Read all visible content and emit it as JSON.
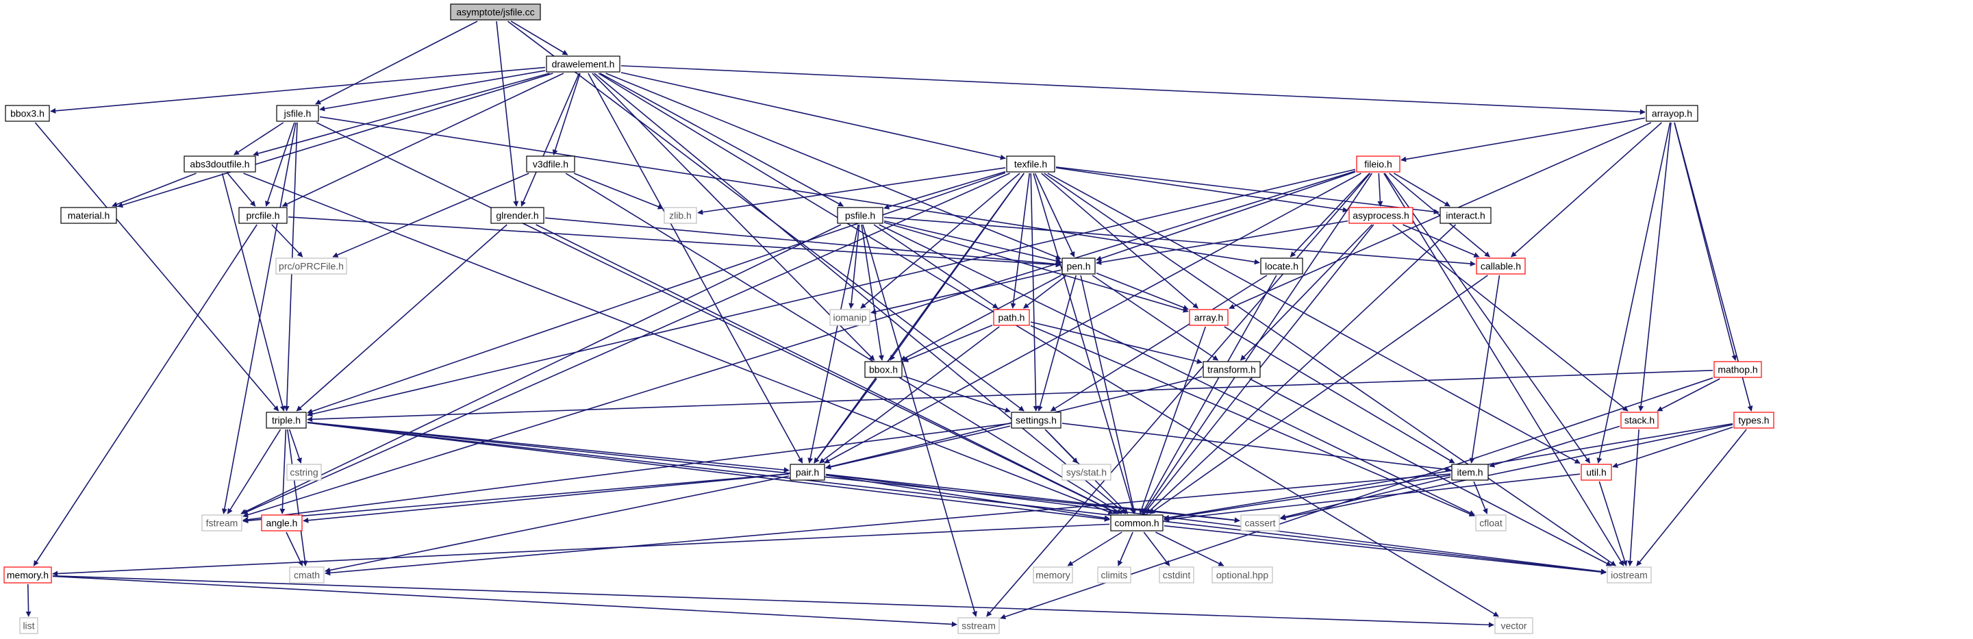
{
  "diagram": {
    "colors": {
      "edge": "#191970",
      "background": "#ffffff",
      "root_fill": "#bfbfbf",
      "default_fill": "#ffffff",
      "default_border": "#000000",
      "red_border": "#ff0000",
      "gray_border": "#bfbfbf",
      "gray_text": "#555555",
      "text": "#000000"
    },
    "nodes": [
      {
        "id": "jsfile_cc",
        "label": "asymptote/jsfile.cc",
        "style": "root"
      },
      {
        "id": "drawelement_h",
        "label": "drawelement.h",
        "style": "normal"
      },
      {
        "id": "bbox3_h",
        "label": "bbox3.h",
        "style": "normal"
      },
      {
        "id": "jsfile_h",
        "label": "jsfile.h",
        "style": "normal"
      },
      {
        "id": "abs3doutfile_h",
        "label": "abs3doutfile.h",
        "style": "normal"
      },
      {
        "id": "v3dfile_h",
        "label": "v3dfile.h",
        "style": "normal"
      },
      {
        "id": "texfile_h",
        "label": "texfile.h",
        "style": "normal"
      },
      {
        "id": "arrayop_h",
        "label": "arrayop.h",
        "style": "normal"
      },
      {
        "id": "fileio_h",
        "label": "fileio.h",
        "style": "red"
      },
      {
        "id": "material_h",
        "label": "material.h",
        "style": "normal"
      },
      {
        "id": "prcfile_h",
        "label": "prcfile.h",
        "style": "normal"
      },
      {
        "id": "glrender_h",
        "label": "glrender.h",
        "style": "normal"
      },
      {
        "id": "zlib_h",
        "label": "zlib.h",
        "style": "gray"
      },
      {
        "id": "psfile_h",
        "label": "psfile.h",
        "style": "normal"
      },
      {
        "id": "asyprocess_h",
        "label": "asyprocess.h",
        "style": "red"
      },
      {
        "id": "interact_h",
        "label": "interact.h",
        "style": "normal"
      },
      {
        "id": "prc_oPRCFile_h",
        "label": "prc/oPRCFile.h",
        "style": "gray"
      },
      {
        "id": "pen_h",
        "label": "pen.h",
        "style": "normal"
      },
      {
        "id": "locate_h",
        "label": "locate.h",
        "style": "normal"
      },
      {
        "id": "callable_h",
        "label": "callable.h",
        "style": "red"
      },
      {
        "id": "iomanip",
        "label": "iomanip",
        "style": "gray"
      },
      {
        "id": "path_h",
        "label": "path.h",
        "style": "red"
      },
      {
        "id": "array_h",
        "label": "array.h",
        "style": "red"
      },
      {
        "id": "bbox_h",
        "label": "bbox.h",
        "style": "normal"
      },
      {
        "id": "transform_h",
        "label": "transform.h",
        "style": "normal"
      },
      {
        "id": "mathop_h",
        "label": "mathop.h",
        "style": "red"
      },
      {
        "id": "triple_h",
        "label": "triple.h",
        "style": "normal"
      },
      {
        "id": "settings_h",
        "label": "settings.h",
        "style": "normal"
      },
      {
        "id": "stack_h",
        "label": "stack.h",
        "style": "red"
      },
      {
        "id": "types_h",
        "label": "types.h",
        "style": "red"
      },
      {
        "id": "cstring",
        "label": "cstring",
        "style": "gray"
      },
      {
        "id": "sys_stat_h",
        "label": "sys/stat.h",
        "style": "gray"
      },
      {
        "id": "pair_h",
        "label": "pair.h",
        "style": "normal"
      },
      {
        "id": "item_h",
        "label": "item.h",
        "style": "normal"
      },
      {
        "id": "util_h",
        "label": "util.h",
        "style": "red"
      },
      {
        "id": "fstream",
        "label": "fstream",
        "style": "gray"
      },
      {
        "id": "angle_h",
        "label": "angle.h",
        "style": "red"
      },
      {
        "id": "common_h",
        "label": "common.h",
        "style": "normal"
      },
      {
        "id": "cassert",
        "label": "cassert",
        "style": "gray"
      },
      {
        "id": "cfloat",
        "label": "cfloat",
        "style": "gray"
      },
      {
        "id": "memory_h",
        "label": "memory.h",
        "style": "red"
      },
      {
        "id": "cmath",
        "label": "cmath",
        "style": "gray"
      },
      {
        "id": "memory",
        "label": "memory",
        "style": "gray"
      },
      {
        "id": "climits",
        "label": "climits",
        "style": "gray"
      },
      {
        "id": "cstdint",
        "label": "cstdint",
        "style": "gray"
      },
      {
        "id": "optional_hpp",
        "label": "optional.hpp",
        "style": "gray"
      },
      {
        "id": "iostream",
        "label": "iostream",
        "style": "gray"
      },
      {
        "id": "list",
        "label": "list",
        "style": "gray"
      },
      {
        "id": "sstream",
        "label": "sstream",
        "style": "gray"
      },
      {
        "id": "vector",
        "label": "vector",
        "style": "gray"
      }
    ],
    "edges": [
      [
        "jsfile_cc",
        "drawelement_h"
      ],
      [
        "jsfile_cc",
        "jsfile_h"
      ],
      [
        "jsfile_cc",
        "glrender_h"
      ],
      [
        "jsfile_cc",
        "settings_h"
      ],
      [
        "drawelement_h",
        "bbox3_h"
      ],
      [
        "drawelement_h",
        "jsfile_h"
      ],
      [
        "drawelement_h",
        "material_h"
      ],
      [
        "drawelement_h",
        "prcfile_h"
      ],
      [
        "drawelement_h",
        "glrender_h"
      ],
      [
        "drawelement_h",
        "v3dfile_h"
      ],
      [
        "drawelement_h",
        "texfile_h"
      ],
      [
        "drawelement_h",
        "psfile_h"
      ],
      [
        "drawelement_h",
        "pen_h"
      ],
      [
        "drawelement_h",
        "bbox_h"
      ],
      [
        "drawelement_h",
        "pair_h"
      ],
      [
        "drawelement_h",
        "common_h"
      ],
      [
        "drawelement_h",
        "arrayop_h"
      ],
      [
        "drawelement_h",
        "abs3doutfile_h"
      ],
      [
        "drawelement_h",
        "vector"
      ],
      [
        "bbox3_h",
        "triple_h"
      ],
      [
        "jsfile_h",
        "abs3doutfile_h"
      ],
      [
        "jsfile_h",
        "prcfile_h"
      ],
      [
        "jsfile_h",
        "triple_h"
      ],
      [
        "jsfile_h",
        "locate_h"
      ],
      [
        "jsfile_h",
        "fstream"
      ],
      [
        "jsfile_h",
        "common_h"
      ],
      [
        "abs3doutfile_h",
        "material_h"
      ],
      [
        "abs3doutfile_h",
        "prcfile_h"
      ],
      [
        "abs3doutfile_h",
        "triple_h"
      ],
      [
        "abs3doutfile_h",
        "common_h"
      ],
      [
        "v3dfile_h",
        "zlib_h"
      ],
      [
        "v3dfile_h",
        "prc_oPRCFile_h"
      ],
      [
        "v3dfile_h",
        "common_h"
      ],
      [
        "prcfile_h",
        "prc_oPRCFile_h"
      ],
      [
        "prcfile_h",
        "pen_h"
      ],
      [
        "prcfile_h",
        "memory_h"
      ],
      [
        "glrender_h",
        "triple_h"
      ],
      [
        "glrender_h",
        "pen_h"
      ],
      [
        "glrender_h",
        "common_h"
      ],
      [
        "texfile_h",
        "psfile_h"
      ],
      [
        "texfile_h",
        "pen_h"
      ],
      [
        "texfile_h",
        "path_h"
      ],
      [
        "texfile_h",
        "array_h"
      ],
      [
        "texfile_h",
        "settings_h"
      ],
      [
        "texfile_h",
        "bbox_h"
      ],
      [
        "texfile_h",
        "iomanip"
      ],
      [
        "texfile_h",
        "asyprocess_h"
      ],
      [
        "texfile_h",
        "interact_h"
      ],
      [
        "texfile_h",
        "pair_h"
      ],
      [
        "texfile_h",
        "common_h"
      ],
      [
        "texfile_h",
        "triple_h"
      ],
      [
        "texfile_h",
        "fstream"
      ],
      [
        "texfile_h",
        "zlib_h"
      ],
      [
        "texfile_h",
        "util_h"
      ],
      [
        "texfile_h",
        "iostream"
      ],
      [
        "arrayop_h",
        "fileio_h"
      ],
      [
        "arrayop_h",
        "callable_h"
      ],
      [
        "arrayop_h",
        "array_h"
      ],
      [
        "arrayop_h",
        "stack_h"
      ],
      [
        "arrayop_h",
        "mathop_h"
      ],
      [
        "arrayop_h",
        "types_h"
      ],
      [
        "arrayop_h",
        "util_h"
      ],
      [
        "fileio_h",
        "asyprocess_h"
      ],
      [
        "fileio_h",
        "interact_h"
      ],
      [
        "fileio_h",
        "locate_h"
      ],
      [
        "fileio_h",
        "pen_h"
      ],
      [
        "fileio_h",
        "callable_h"
      ],
      [
        "fileio_h",
        "common_h"
      ],
      [
        "fileio_h",
        "util_h"
      ],
      [
        "fileio_h",
        "pair_h"
      ],
      [
        "fileio_h",
        "triple_h"
      ],
      [
        "fileio_h",
        "iostream"
      ],
      [
        "fileio_h",
        "sstream"
      ],
      [
        "fileio_h",
        "fstream"
      ],
      [
        "psfile_h",
        "pen_h"
      ],
      [
        "psfile_h",
        "path_h"
      ],
      [
        "psfile_h",
        "bbox_h"
      ],
      [
        "psfile_h",
        "pair_h"
      ],
      [
        "psfile_h",
        "iomanip"
      ],
      [
        "psfile_h",
        "array_h"
      ],
      [
        "psfile_h",
        "callable_h"
      ],
      [
        "psfile_h",
        "fstream"
      ],
      [
        "psfile_h",
        "sstream"
      ],
      [
        "psfile_h",
        "cfloat"
      ],
      [
        "asyprocess_h",
        "pen_h"
      ],
      [
        "asyprocess_h",
        "callable_h"
      ],
      [
        "asyprocess_h",
        "transform_h"
      ],
      [
        "asyprocess_h",
        "stack_h"
      ],
      [
        "asyprocess_h",
        "common_h"
      ],
      [
        "interact_h",
        "common_h"
      ],
      [
        "pen_h",
        "path_h"
      ],
      [
        "pen_h",
        "array_h"
      ],
      [
        "pen_h",
        "transform_h"
      ],
      [
        "pen_h",
        "settings_h"
      ],
      [
        "pen_h",
        "bbox_h"
      ],
      [
        "pen_h",
        "iomanip"
      ],
      [
        "pen_h",
        "common_h"
      ],
      [
        "locate_h",
        "settings_h"
      ],
      [
        "locate_h",
        "common_h"
      ],
      [
        "callable_h",
        "item_h"
      ],
      [
        "callable_h",
        "common_h"
      ],
      [
        "path_h",
        "bbox_h"
      ],
      [
        "path_h",
        "transform_h"
      ],
      [
        "path_h",
        "pair_h"
      ],
      [
        "path_h",
        "cfloat"
      ],
      [
        "array_h",
        "item_h"
      ],
      [
        "array_h",
        "common_h"
      ],
      [
        "bbox_h",
        "settings_h"
      ],
      [
        "bbox_h",
        "pair_h"
      ],
      [
        "transform_h",
        "pair_h"
      ],
      [
        "transform_h",
        "iostream"
      ],
      [
        "mathop_h",
        "triple_h"
      ],
      [
        "mathop_h",
        "stack_h"
      ],
      [
        "mathop_h",
        "sstream"
      ],
      [
        "triple_h",
        "pair_h"
      ],
      [
        "triple_h",
        "cstring"
      ],
      [
        "triple_h",
        "angle_h"
      ],
      [
        "triple_h",
        "fstream"
      ],
      [
        "triple_h",
        "common_h"
      ],
      [
        "triple_h",
        "cmath"
      ],
      [
        "triple_h",
        "iostream"
      ],
      [
        "triple_h",
        "cassert"
      ],
      [
        "settings_h",
        "pair_h"
      ],
      [
        "settings_h",
        "item_h"
      ],
      [
        "settings_h",
        "sys_stat_h"
      ],
      [
        "settings_h",
        "common_h"
      ],
      [
        "settings_h",
        "fstream"
      ],
      [
        "stack_h",
        "item_h"
      ],
      [
        "stack_h",
        "iostream"
      ],
      [
        "types_h",
        "util_h"
      ],
      [
        "types_h",
        "common_h"
      ],
      [
        "types_h",
        "iostream"
      ],
      [
        "types_h",
        "cassert"
      ],
      [
        "pair_h",
        "fstream"
      ],
      [
        "pair_h",
        "angle_h"
      ],
      [
        "pair_h",
        "common_h"
      ],
      [
        "pair_h",
        "cassert"
      ],
      [
        "pair_h",
        "cmath"
      ],
      [
        "pair_h",
        "iostream"
      ],
      [
        "item_h",
        "common_h"
      ],
      [
        "item_h",
        "cassert"
      ],
      [
        "item_h",
        "cfloat"
      ],
      [
        "item_h",
        "cmath"
      ],
      [
        "util_h",
        "common_h"
      ],
      [
        "util_h",
        "iostream"
      ],
      [
        "angle_h",
        "cmath"
      ],
      [
        "common_h",
        "memory"
      ],
      [
        "common_h",
        "climits"
      ],
      [
        "common_h",
        "cstdint"
      ],
      [
        "common_h",
        "optional_hpp"
      ],
      [
        "common_h",
        "memory_h"
      ],
      [
        "common_h",
        "iostream"
      ],
      [
        "memory_h",
        "list"
      ],
      [
        "memory_h",
        "vector"
      ],
      [
        "memory_h",
        "sstream"
      ]
    ]
  }
}
